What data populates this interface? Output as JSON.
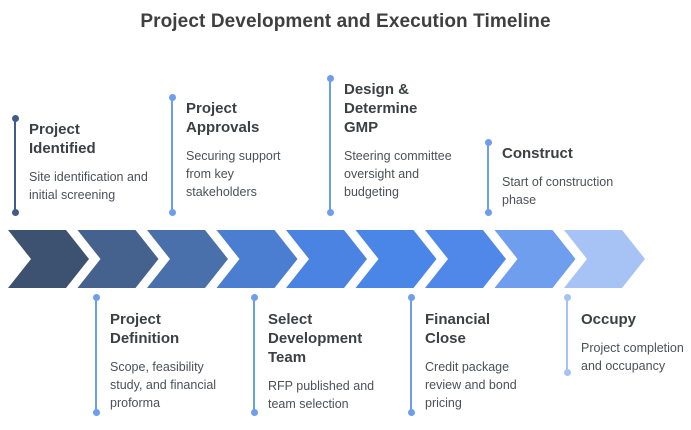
{
  "title": "Project Development and Execution Timeline",
  "colors": {
    "chevrons": [
      "#3d5271",
      "#45618e",
      "#4a70ac",
      "#4b7dd1",
      "#4a83e1",
      "#4a86e8",
      "#4f88e9",
      "#6f9eee",
      "#a7c3f6"
    ],
    "connector_dark": "#425c88",
    "connector_mid": "#6d9eeb",
    "connector_light": "#a4c2f4",
    "title_text": "#3f3f3f",
    "heading_text": "#3c4043",
    "body_text": "#4d5156"
  },
  "milestones": {
    "top": [
      {
        "title": "Project\nIdentified",
        "desc": "Site identification and\ninitial screening"
      },
      {
        "title": "Project\nApprovals",
        "desc": "Securing support\nfrom key\nstakeholders"
      },
      {
        "title": "Design &\nDetermine\nGMP",
        "desc": "Steering committee\noversight and\nbudgeting"
      },
      {
        "title": "Construct",
        "desc": "Start of construction\nphase"
      }
    ],
    "bottom": [
      {
        "title": "Project\nDefinition",
        "desc": "Scope, feasibility\nstudy, and financial\nproforma"
      },
      {
        "title": "Select\nDevelopment\nTeam",
        "desc": "RFP published and\nteam selection"
      },
      {
        "title": "Financial\nClose",
        "desc": "Credit package\nreview and bond\npricing"
      },
      {
        "title": "Occupy",
        "desc": "Project completion\nand occupancy"
      }
    ]
  }
}
